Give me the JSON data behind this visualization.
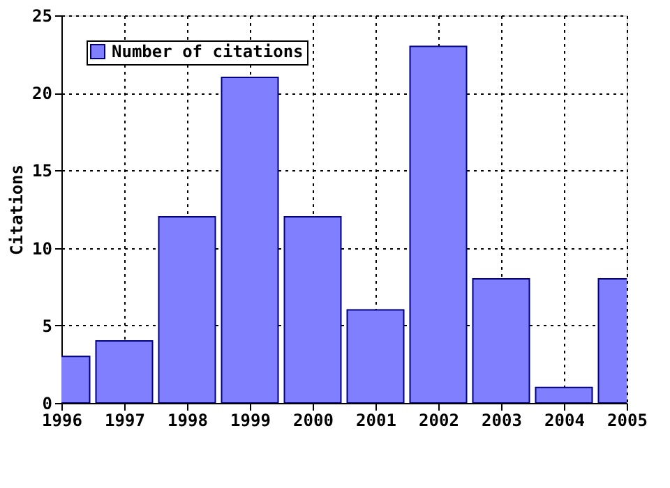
{
  "chart_data": {
    "type": "bar",
    "ylabel": "Citations",
    "x": [
      1996,
      1997,
      1998,
      1999,
      2000,
      2001,
      2002,
      2003,
      2004,
      2005
    ],
    "series": [
      {
        "name": "Number of citations",
        "color": "#8080ff",
        "values": [
          3,
          4,
          12,
          21,
          12,
          6,
          23,
          8,
          1,
          8
        ]
      }
    ],
    "xlim": [
      1996,
      2005
    ],
    "xticks": [
      1996,
      1997,
      1998,
      1999,
      2000,
      2001,
      2002,
      2003,
      2004,
      2005
    ],
    "ylim": [
      0,
      25
    ],
    "yticks": [
      0,
      5,
      10,
      15,
      20,
      25
    ],
    "grid": true,
    "legend": "top left"
  }
}
